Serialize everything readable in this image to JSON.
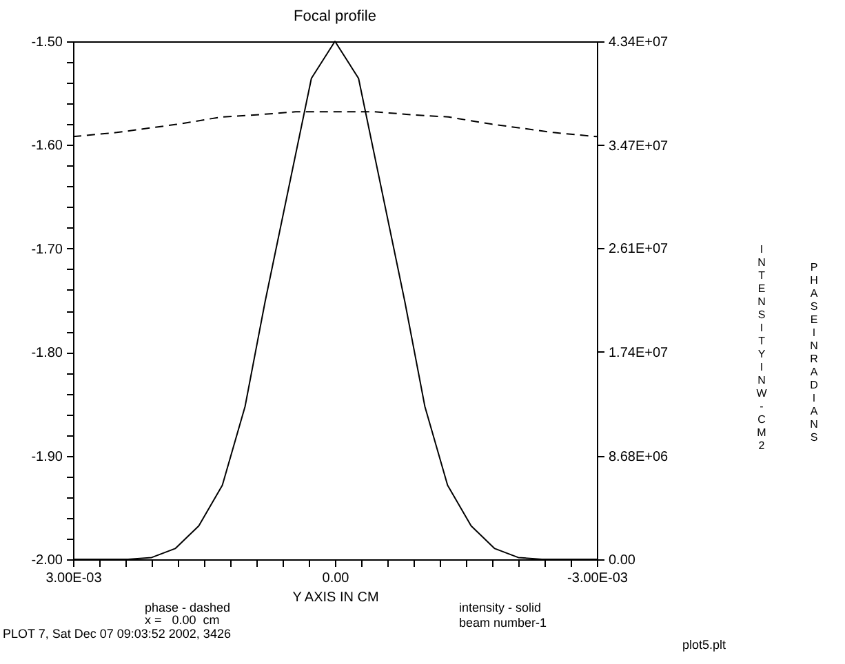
{
  "chart_data": {
    "type": "line",
    "title": "Focal profile",
    "xlabel": "Y AXIS IN CM",
    "ylabel": "PHASE IN RADIANS",
    "y2label": "INTENSITY IN W-CM2",
    "xlim": [
      0.003,
      -0.003
    ],
    "xticks": [
      {
        "value": 0.003,
        "label": "3.00E-03"
      },
      {
        "value": 0.0027,
        "label": null
      },
      {
        "value": 0.0024,
        "label": null
      },
      {
        "value": 0.0021,
        "label": null
      },
      {
        "value": 0.0018,
        "label": null
      },
      {
        "value": 0.0015,
        "label": null
      },
      {
        "value": 0.0012,
        "label": null
      },
      {
        "value": 0.0009,
        "label": null
      },
      {
        "value": 0.0006,
        "label": null
      },
      {
        "value": 0.0003,
        "label": null
      },
      {
        "value": 0,
        "label": "0.00"
      },
      {
        "value": -0.0003,
        "label": null
      },
      {
        "value": -0.0006,
        "label": null
      },
      {
        "value": -0.0009,
        "label": null
      },
      {
        "value": -0.0012,
        "label": null
      },
      {
        "value": -0.0015,
        "label": null
      },
      {
        "value": -0.0018,
        "label": null
      },
      {
        "value": -0.0021,
        "label": null
      },
      {
        "value": -0.0024,
        "label": null
      },
      {
        "value": -0.0027,
        "label": null
      },
      {
        "value": -0.003,
        "label": "-3.00E-03"
      }
    ],
    "ylim": [
      -2,
      -1.5
    ],
    "yticks": [
      {
        "value": -2,
        "label": "-2.00"
      },
      {
        "value": -1.98,
        "label": null
      },
      {
        "value": -1.96,
        "label": null
      },
      {
        "value": -1.94,
        "label": null
      },
      {
        "value": -1.92,
        "label": null
      },
      {
        "value": -1.9,
        "label": "-1.90"
      },
      {
        "value": -1.88,
        "label": null
      },
      {
        "value": -1.86,
        "label": null
      },
      {
        "value": -1.84,
        "label": null
      },
      {
        "value": -1.82,
        "label": null
      },
      {
        "value": -1.8,
        "label": "-1.80"
      },
      {
        "value": -1.78,
        "label": null
      },
      {
        "value": -1.76,
        "label": null
      },
      {
        "value": -1.74,
        "label": null
      },
      {
        "value": -1.72,
        "label": null
      },
      {
        "value": -1.7,
        "label": "-1.70"
      },
      {
        "value": -1.68,
        "label": null
      },
      {
        "value": -1.66,
        "label": null
      },
      {
        "value": -1.64,
        "label": null
      },
      {
        "value": -1.62,
        "label": null
      },
      {
        "value": -1.6,
        "label": "-1.60"
      },
      {
        "value": -1.58,
        "label": null
      },
      {
        "value": -1.56,
        "label": null
      },
      {
        "value": -1.54,
        "label": null
      },
      {
        "value": -1.52,
        "label": null
      },
      {
        "value": -1.5,
        "label": "-1.50"
      }
    ],
    "y2lim": [
      0,
      43400000
    ],
    "y2ticks": [
      {
        "value": 0,
        "label": "0.00"
      },
      {
        "value": 8680000,
        "label": "8.68E+06"
      },
      {
        "value": 17400000,
        "label": "1.74E+07"
      },
      {
        "value": 26100000,
        "label": "2.61E+07"
      },
      {
        "value": 34700000,
        "label": "3.47E+07"
      },
      {
        "value": 43400000,
        "label": "4.34E+07"
      }
    ],
    "series": [
      {
        "color": "#000000",
        "line_style": "dashed",
        "x": [
          0.003,
          0.0025,
          0.0018,
          0.0013,
          0.0009,
          0.00045,
          0,
          -0.00045,
          -0.0009,
          -0.0013,
          -0.0018,
          -0.0025,
          -0.003
        ],
        "values": [
          -1.592,
          -1.588,
          -1.58,
          -1.573,
          -1.571,
          -1.568,
          -1.568,
          -1.568,
          -1.571,
          -1.573,
          -1.58,
          -1.588,
          -1.592
        ]
      },
      {
        "color": "#000000",
        "line_style": "solid",
        "axis": "y2",
        "x": [
          0.003,
          0.00237,
          0.0021,
          0.00183,
          0.00156,
          0.00129,
          0.00103,
          0.0008,
          0.00027,
          0,
          -0.00027,
          -0.0008,
          -0.00103,
          -0.00129,
          -0.00156,
          -0.00183,
          -0.0021,
          -0.00237,
          -0.003
        ],
        "values": [
          0,
          0,
          150000,
          900000,
          2800000,
          6200000,
          12800000,
          21600000,
          40300000,
          43400000,
          40300000,
          21600000,
          12800000,
          6200000,
          2800000,
          900000,
          150000,
          0,
          0
        ]
      }
    ],
    "annotations": [
      "phase - dashed",
      "x =   0.00  cm",
      "PLOT 7, Sat Dec 07 09:03:52 2002, 3426",
      "intensity - solid",
      "beam number-1",
      "plot5.plt"
    ],
    "grid": false
  }
}
